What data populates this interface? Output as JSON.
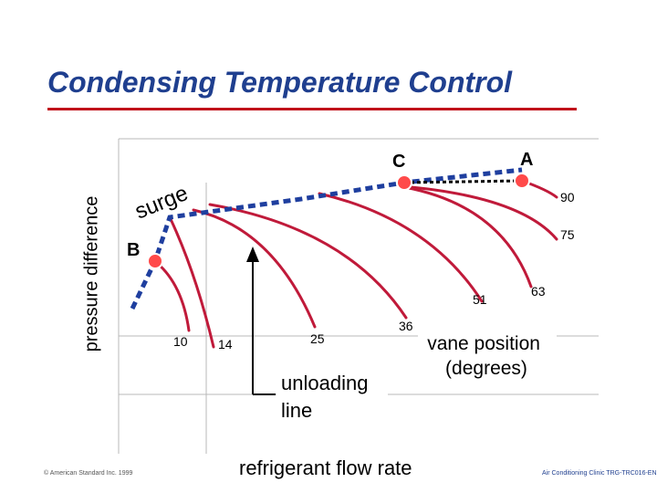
{
  "title": "Condensing Temperature Control",
  "axes": {
    "y_label": "pressure difference",
    "x_label": "refrigerant flow rate"
  },
  "points": {
    "a": "A",
    "b": "B",
    "c": "C"
  },
  "surge_label": "surge",
  "unloading_label": "unloading line",
  "vane_label": "vane position (degrees)",
  "curve_labels": {
    "v10": "10",
    "v14": "14",
    "v25": "25",
    "v36": "36",
    "v51": "51",
    "v63": "63",
    "v75": "75",
    "v90": "90"
  },
  "footer": {
    "copyright": "© American Standard Inc. 1999",
    "course": "Air Conditioning Clinic TRG-TRC016-EN"
  },
  "colors": {
    "title": "#1f3f8f",
    "rule": "#c0121b",
    "curve": "#c01a3a",
    "surge_line": "#1f3f9f",
    "point": "#ff4a4a",
    "grid": "#b8b8b8"
  }
}
